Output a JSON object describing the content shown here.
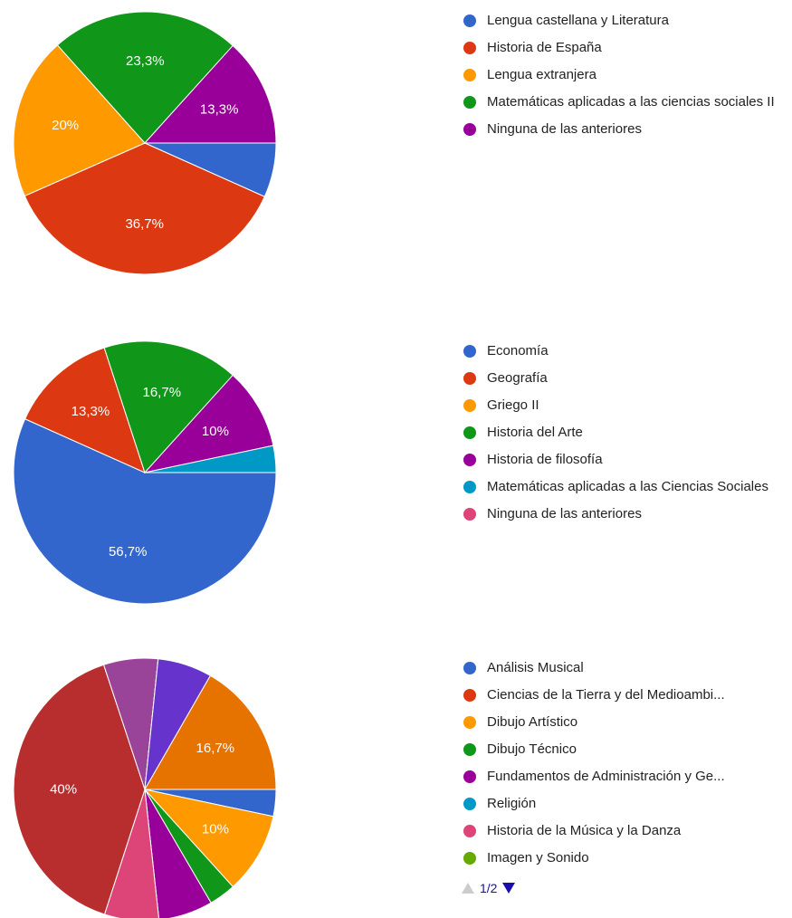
{
  "chart_data": [
    {
      "type": "pie",
      "categories": [
        "Lengua castellana y Literatura",
        "Historia de España",
        "Lengua extranjera",
        "Matemáticas aplicadas a las ciencias sociales II",
        "Ninguna de las anteriores"
      ],
      "values": [
        6.7,
        36.7,
        20,
        23.3,
        13.3
      ],
      "value_labels": [
        null,
        "36,7%",
        "20%",
        "23,3%",
        "13,3%"
      ],
      "colors": [
        "#3366cc",
        "#dc3912",
        "#ff9900",
        "#109618",
        "#990099"
      ]
    },
    {
      "type": "pie",
      "categories": [
        "Economía",
        "Geografía",
        "Griego II",
        "Historia del Arte",
        "Historia de filosofía",
        "Matemáticas aplicadas a las Ciencias Sociales",
        "Ninguna de las anteriores"
      ],
      "values": [
        56.7,
        13.3,
        0,
        16.7,
        10,
        3.3,
        0
      ],
      "value_labels": [
        "56,7%",
        "13,3%",
        null,
        "16,7%",
        "10%",
        null,
        null
      ],
      "colors": [
        "#3366cc",
        "#dc3912",
        "#ff9900",
        "#109618",
        "#990099",
        "#0099c6",
        "#dd4477"
      ]
    },
    {
      "type": "pie",
      "categories": [
        "Análisis Musical",
        "Ciencias de la Tierra y del Medioambi...",
        "Dibujo Artístico",
        "Dibujo Técnico",
        "Fundamentos de Administración y Ge...",
        "Religión",
        "Historia de la Música y la Danza",
        "Imagen y Sonido",
        null,
        null,
        null,
        null,
        null,
        null,
        null
      ],
      "values": [
        3.3,
        0,
        10,
        3.3,
        6.7,
        0,
        6.7,
        0,
        40,
        0,
        6.7,
        0,
        0,
        6.7,
        16.7
      ],
      "value_labels": [
        null,
        null,
        "10%",
        null,
        null,
        null,
        null,
        null,
        "40%",
        null,
        null,
        null,
        null,
        null,
        "16,7%"
      ],
      "colors": [
        "#3366cc",
        "#dc3912",
        "#ff9900",
        "#109618",
        "#990099",
        "#0099c6",
        "#dd4477",
        "#66aa00",
        "#b82e2e",
        "#316395",
        "#994499",
        "#22aa99",
        "#aaaa11",
        "#6633cc",
        "#e67300"
      ],
      "legend_page": "1/2"
    }
  ]
}
